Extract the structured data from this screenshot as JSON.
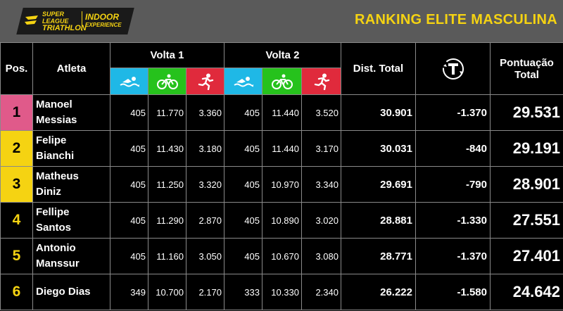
{
  "logo": {
    "line1": "SUPER LEAGUE",
    "line2": "TRIATHLON",
    "line3": "INDOOR",
    "line4": "EXPERIENCE",
    "color": "#f5d312"
  },
  "title": "RANKING ELITE MASCULINA",
  "headers": {
    "pos": "Pos.",
    "athlete": "Atleta",
    "lap1": "Volta 1",
    "lap2": "Volta 2",
    "dist_total": "Dist. Total",
    "penalty_icon": "time-penalty-icon",
    "points_line1": "Pontuação",
    "points_line2": "Total"
  },
  "sport_icons": [
    "swim-icon",
    "bike-icon",
    "run-icon"
  ],
  "colors": {
    "swim": "#1fb8e6",
    "bike": "#26c21c",
    "run": "#e02a3c",
    "first": "#e05a8a",
    "podium": "#f5d312",
    "accent": "#f5d312"
  },
  "rows": [
    {
      "pos": "1",
      "first": "Manoel",
      "last": "Messias",
      "v1": [
        "405",
        "11.770",
        "3.360"
      ],
      "v2": [
        "405",
        "11.440",
        "3.520"
      ],
      "dist": "30.901",
      "pen": "-1.370",
      "pts": "29.531"
    },
    {
      "pos": "2",
      "first": "Felipe",
      "last": "Bianchi",
      "v1": [
        "405",
        "11.430",
        "3.180"
      ],
      "v2": [
        "405",
        "11.440",
        "3.170"
      ],
      "dist": "30.031",
      "pen": "-840",
      "pts": "29.191"
    },
    {
      "pos": "3",
      "first": "Matheus",
      "last": "Diniz",
      "v1": [
        "405",
        "11.250",
        "3.320"
      ],
      "v2": [
        "405",
        "10.970",
        "3.340"
      ],
      "dist": "29.691",
      "pen": "-790",
      "pts": "28.901"
    },
    {
      "pos": "4",
      "first": "Fellipe",
      "last": "Santos",
      "v1": [
        "405",
        "11.290",
        "2.870"
      ],
      "v2": [
        "405",
        "10.890",
        "3.020"
      ],
      "dist": "28.881",
      "pen": "-1.330",
      "pts": "27.551"
    },
    {
      "pos": "5",
      "first": "Antonio",
      "last": "Manssur",
      "v1": [
        "405",
        "11.160",
        "3.050"
      ],
      "v2": [
        "405",
        "10.670",
        "3.080"
      ],
      "dist": "28.771",
      "pen": "-1.370",
      "pts": "27.401"
    },
    {
      "pos": "6",
      "first": "Diego Dias",
      "last": "",
      "v1": [
        "349",
        "10.700",
        "2.170"
      ],
      "v2": [
        "333",
        "10.330",
        "2.340"
      ],
      "dist": "26.222",
      "pen": "-1.580",
      "pts": "24.642"
    }
  ]
}
